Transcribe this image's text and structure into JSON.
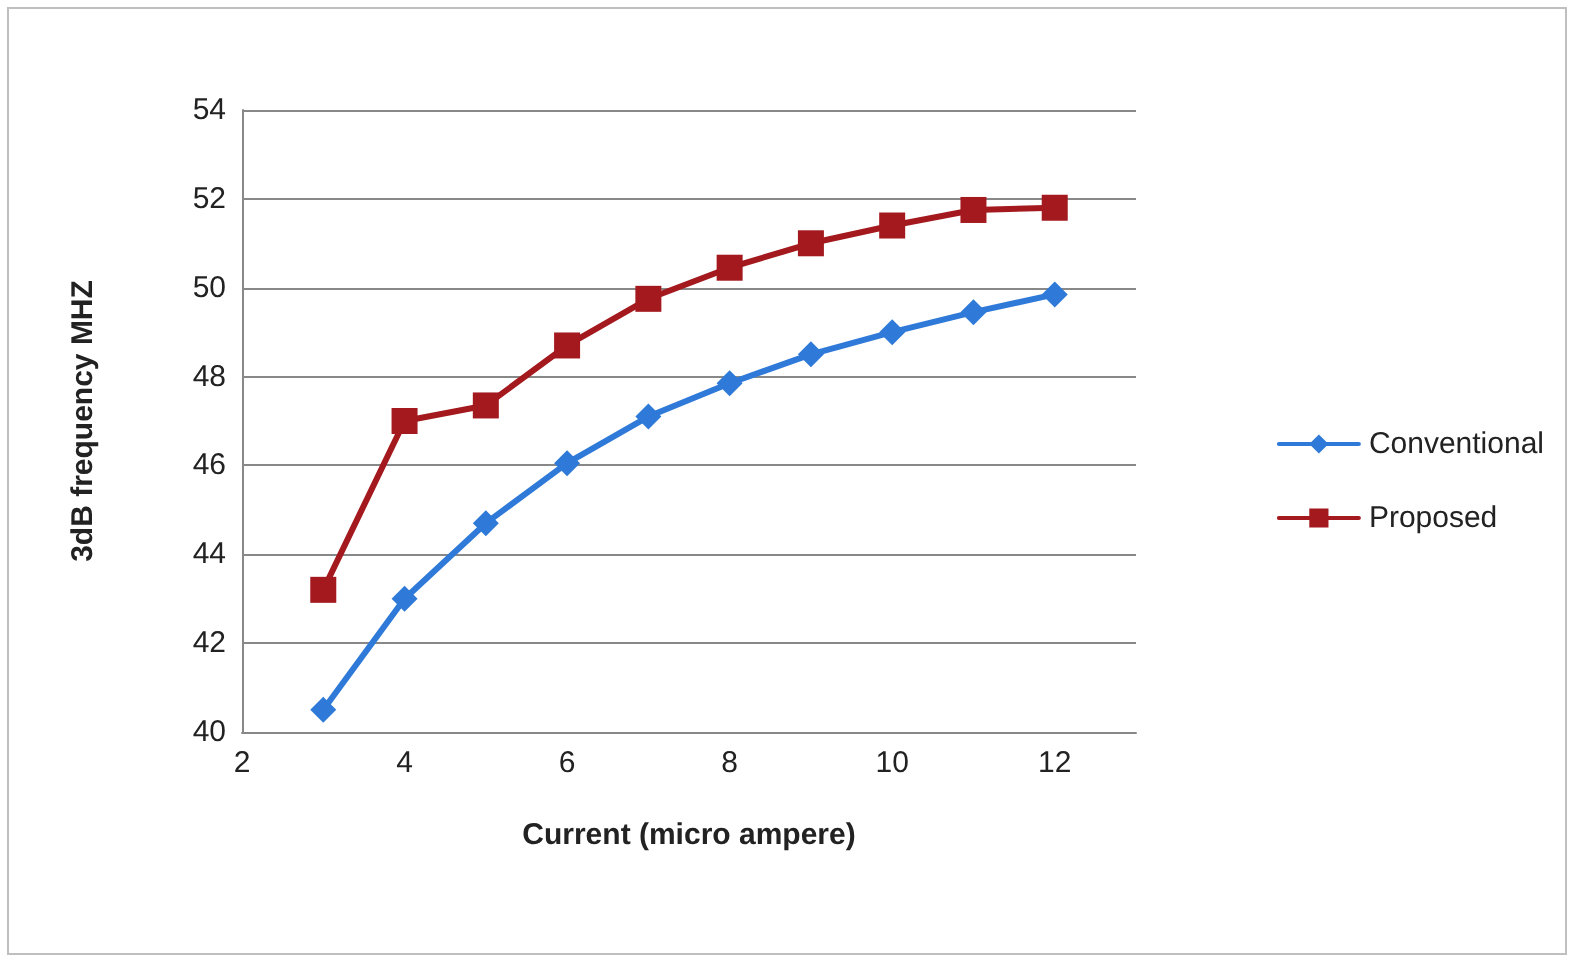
{
  "chart_data": {
    "type": "line",
    "xlabel": "Current (micro ampere)",
    "ylabel": "3dB frequency MHZ",
    "x": [
      3,
      4,
      5,
      6,
      7,
      8,
      9,
      10,
      11,
      12
    ],
    "series": [
      {
        "name": "Conventional",
        "color": "#2f7ad8",
        "marker": "diamond",
        "values": [
          40.5,
          43.0,
          44.7,
          46.05,
          47.1,
          47.85,
          48.5,
          49.0,
          49.45,
          49.85
        ]
      },
      {
        "name": "Proposed",
        "color": "#a3191e",
        "marker": "square",
        "values": [
          43.2,
          47.0,
          47.35,
          48.7,
          49.75,
          50.45,
          51.0,
          51.4,
          51.75,
          51.8
        ]
      }
    ],
    "xlim": [
      2,
      13
    ],
    "xticks": [
      2,
      4,
      6,
      8,
      10,
      12
    ],
    "ylim": [
      40,
      54
    ],
    "yticks": [
      40,
      42,
      44,
      46,
      48,
      50,
      52,
      54
    ],
    "grid": "y",
    "legend": "right",
    "line_style": "solid"
  }
}
